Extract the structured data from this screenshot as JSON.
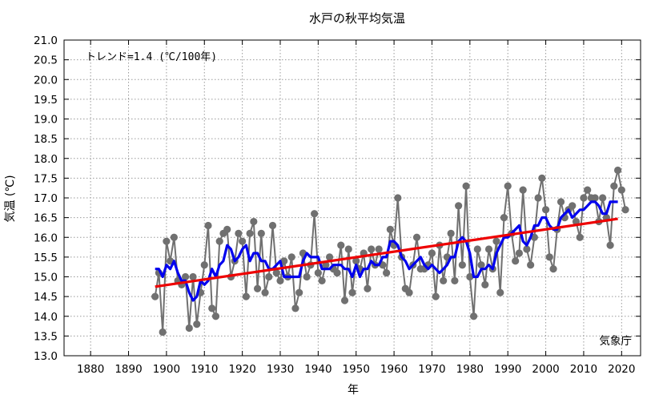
{
  "chart_data": {
    "type": "line",
    "title": "水戸の秋平均気温",
    "xlabel": "年",
    "ylabel": "気温 (℃)",
    "xlim": [
      1873,
      2025
    ],
    "ylim": [
      13.0,
      21.0
    ],
    "xticks": [
      1880,
      1890,
      1900,
      1910,
      1920,
      1930,
      1940,
      1950,
      1960,
      1970,
      1980,
      1990,
      2000,
      2010,
      2020
    ],
    "yticks": [
      "13.0",
      "13.5",
      "14.0",
      "14.5",
      "15.0",
      "15.5",
      "16.0",
      "16.5",
      "17.0",
      "17.5",
      "18.0",
      "18.5",
      "19.0",
      "19.5",
      "20.0",
      "20.5",
      "21.0"
    ],
    "grid": true,
    "annotation": "トレンド=1.4 (℃/100年)",
    "source_label": "気象庁",
    "colors": {
      "annual": "#707070",
      "moving_average": "#0000ee",
      "trend": "#ee0000"
    },
    "series": [
      {
        "name": "annual",
        "x": [
          1897,
          1898,
          1899,
          1900,
          1901,
          1902,
          1903,
          1904,
          1905,
          1906,
          1907,
          1908,
          1909,
          1910,
          1911,
          1912,
          1913,
          1914,
          1915,
          1916,
          1917,
          1918,
          1919,
          1920,
          1921,
          1922,
          1923,
          1924,
          1925,
          1926,
          1927,
          1928,
          1929,
          1930,
          1931,
          1932,
          1933,
          1934,
          1935,
          1936,
          1937,
          1938,
          1939,
          1940,
          1941,
          1942,
          1943,
          1944,
          1945,
          1946,
          1947,
          1948,
          1949,
          1950,
          1951,
          1952,
          1953,
          1954,
          1955,
          1956,
          1957,
          1958,
          1959,
          1960,
          1961,
          1962,
          1963,
          1964,
          1965,
          1966,
          1967,
          1968,
          1969,
          1970,
          1971,
          1972,
          1973,
          1974,
          1975,
          1976,
          1977,
          1978,
          1979,
          1980,
          1981,
          1982,
          1983,
          1984,
          1985,
          1986,
          1987,
          1988,
          1989,
          1990,
          1991,
          1992,
          1993,
          1994,
          1995,
          1996,
          1997,
          1998,
          1999,
          2000,
          2001,
          2002,
          2003,
          2004,
          2005,
          2006,
          2007,
          2008,
          2009,
          2010,
          2011,
          2012,
          2013,
          2014,
          2015,
          2016,
          2017,
          2018,
          2019,
          2020,
          2021
        ],
        "y": [
          14.5,
          15.1,
          13.6,
          15.9,
          15.4,
          16.0,
          14.9,
          14.8,
          15.0,
          13.7,
          15.0,
          13.8,
          14.6,
          15.3,
          16.3,
          14.2,
          14.0,
          15.9,
          16.1,
          16.2,
          15.0,
          15.4,
          16.1,
          15.9,
          14.5,
          16.1,
          16.4,
          14.7,
          16.1,
          14.6,
          15.0,
          16.3,
          15.1,
          14.9,
          15.4,
          15.0,
          15.5,
          14.2,
          14.6,
          15.6,
          15.0,
          15.3,
          16.6,
          15.1,
          14.9,
          15.3,
          15.5,
          15.2,
          15.1,
          15.8,
          14.4,
          15.7,
          14.6,
          15.4,
          15.2,
          15.6,
          14.7,
          15.7,
          15.3,
          15.7,
          15.3,
          15.1,
          16.2,
          15.8,
          17.0,
          15.5,
          14.7,
          14.6,
          15.3,
          16.0,
          15.2,
          15.2,
          15.3,
          15.6,
          14.5,
          15.8,
          14.9,
          15.5,
          16.1,
          14.9,
          16.8,
          15.3,
          17.3,
          15.0,
          14.0,
          15.7,
          15.3,
          14.8,
          15.7,
          15.2,
          15.9,
          14.6,
          16.5,
          17.3,
          16.1,
          15.4,
          15.6,
          17.2,
          15.7,
          15.3,
          16.0,
          17.0,
          17.5,
          16.7,
          15.5,
          15.2,
          16.2,
          16.9,
          16.5,
          16.7,
          16.8,
          16.4,
          16.0,
          17.0,
          17.2,
          17.0,
          17.0,
          16.4,
          17.0,
          16.5,
          15.8,
          17.3,
          17.7,
          17.2,
          16.7
        ]
      },
      {
        "name": "moving_average",
        "x": [
          1897,
          1898,
          1899,
          1900,
          1901,
          1902,
          1903,
          1904,
          1905,
          1906,
          1907,
          1908,
          1909,
          1910,
          1911,
          1912,
          1913,
          1914,
          1915,
          1916,
          1917,
          1918,
          1919,
          1920,
          1921,
          1922,
          1923,
          1924,
          1925,
          1926,
          1927,
          1928,
          1929,
          1930,
          1931,
          1932,
          1933,
          1934,
          1935,
          1936,
          1937,
          1938,
          1939,
          1940,
          1941,
          1942,
          1943,
          1944,
          1945,
          1946,
          1947,
          1948,
          1949,
          1950,
          1951,
          1952,
          1953,
          1954,
          1955,
          1956,
          1957,
          1958,
          1959,
          1960,
          1961,
          1962,
          1963,
          1964,
          1965,
          1966,
          1967,
          1968,
          1969,
          1970,
          1971,
          1972,
          1973,
          1974,
          1975,
          1976,
          1977,
          1978,
          1979,
          1980,
          1981,
          1982,
          1983,
          1984,
          1985,
          1986,
          1987,
          1988,
          1989,
          1990,
          1991,
          1992,
          1993,
          1994,
          1995,
          1996,
          1997,
          1998,
          1999,
          2000,
          2001,
          2002,
          2003,
          2004,
          2005,
          2006,
          2007,
          2008,
          2009,
          2010,
          2011,
          2012,
          2013,
          2014,
          2015,
          2016,
          2017,
          2018,
          2019
        ],
        "y": [
          15.2,
          15.2,
          15.0,
          15.3,
          15.2,
          15.4,
          15.1,
          14.9,
          14.9,
          14.6,
          14.4,
          14.5,
          14.9,
          14.8,
          14.9,
          15.2,
          15.0,
          15.3,
          15.4,
          15.8,
          15.7,
          15.4,
          15.5,
          15.7,
          15.8,
          15.4,
          15.6,
          15.6,
          15.4,
          15.4,
          15.2,
          15.2,
          15.3,
          15.4,
          15.0,
          15.0,
          15.0,
          15.0,
          15.0,
          15.4,
          15.6,
          15.5,
          15.5,
          15.5,
          15.2,
          15.2,
          15.2,
          15.3,
          15.3,
          15.3,
          15.2,
          15.2,
          15.0,
          15.3,
          15.0,
          15.2,
          15.2,
          15.4,
          15.3,
          15.3,
          15.5,
          15.5,
          15.9,
          15.9,
          15.8,
          15.5,
          15.4,
          15.2,
          15.3,
          15.4,
          15.5,
          15.3,
          15.2,
          15.3,
          15.2,
          15.1,
          15.2,
          15.3,
          15.5,
          15.5,
          15.9,
          16.0,
          15.9,
          15.6,
          15.0,
          15.0,
          15.2,
          15.2,
          15.3,
          15.2,
          15.6,
          15.8,
          16.0,
          16.0,
          16.1,
          16.2,
          16.3,
          15.9,
          15.8,
          16.0,
          16.3,
          16.3,
          16.5,
          16.5,
          16.3,
          16.2,
          16.2,
          16.5,
          16.6,
          16.7,
          16.5,
          16.6,
          16.7,
          16.7,
          16.8,
          16.9,
          16.9,
          16.8,
          16.6,
          16.6,
          16.9,
          16.9,
          16.9
        ]
      },
      {
        "name": "trend",
        "x": [
          1897,
          2019
        ],
        "y": [
          14.75,
          16.47
        ]
      }
    ]
  }
}
